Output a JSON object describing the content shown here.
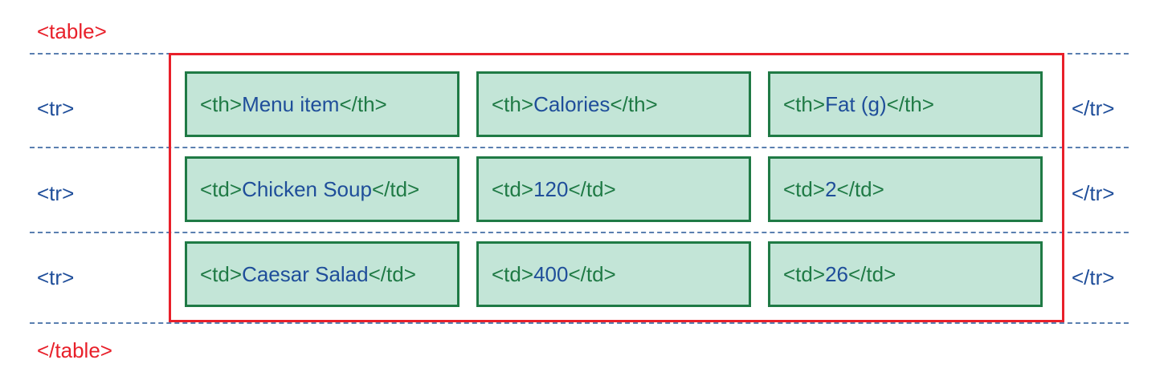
{
  "table_open": "<table>",
  "table_close": "</table>",
  "tr_open": "<tr>",
  "tr_close": "</tr>",
  "rows": [
    {
      "cells": [
        {
          "open": "<th>",
          "value": "Menu item",
          "close": "</th>"
        },
        {
          "open": "<th>",
          "value": "Calories",
          "close": "</th>"
        },
        {
          "open": "<th>",
          "value": "Fat (g)",
          "close": "</th>"
        }
      ]
    },
    {
      "cells": [
        {
          "open": "<td>",
          "value": "Chicken Soup",
          "close": "</td>"
        },
        {
          "open": "<td>",
          "value": "120",
          "close": "</td>"
        },
        {
          "open": "<td>",
          "value": "2",
          "close": "</td>"
        }
      ]
    },
    {
      "cells": [
        {
          "open": "<td>",
          "value": "Caesar Salad",
          "close": "</td>"
        },
        {
          "open": "<td>",
          "value": "400",
          "close": "</td>"
        },
        {
          "open": "<td>",
          "value": "26",
          "close": "</td>"
        }
      ]
    }
  ],
  "colors": {
    "table_border": "#e8202a",
    "cell_fill": "#c3e5d7",
    "cell_border": "#1f7a45",
    "tag_blue": "#1f4e9a",
    "dash": "#5a7fb0"
  }
}
